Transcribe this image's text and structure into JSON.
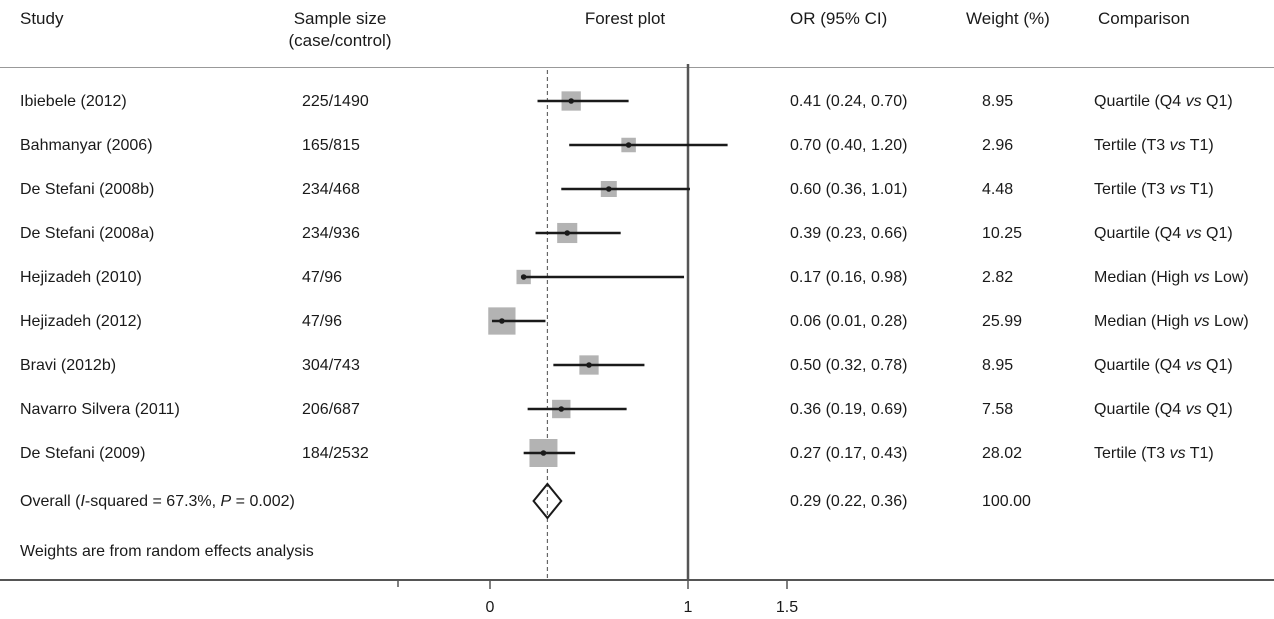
{
  "headers": {
    "study": "Study",
    "sample_size_line1": "Sample size",
    "sample_size_line2": "(case/control)",
    "forest_plot": "Forest plot",
    "or_ci": "OR (95% CI)",
    "weight": "Weight (%)",
    "comparison": "Comparison"
  },
  "rows": [
    {
      "study": "Ibiebele (2012)",
      "sample": "225/1490",
      "or_text": "0.41 (0.24, 0.70)",
      "weight": "8.95",
      "comp_pre": "Quartile (Q4 ",
      "comp_vs": "vs",
      "comp_post": " Q1)"
    },
    {
      "study": "Bahmanyar (2006)",
      "sample": "165/815",
      "or_text": "0.70 (0.40, 1.20)",
      "weight": "2.96",
      "comp_pre": "Tertile (T3 ",
      "comp_vs": "vs",
      "comp_post": " T1)"
    },
    {
      "study": "De Stefani (2008b)",
      "sample": "234/468",
      "or_text": "0.60 (0.36, 1.01)",
      "weight": "4.48",
      "comp_pre": "Tertile (T3 ",
      "comp_vs": "vs",
      "comp_post": " T1)"
    },
    {
      "study": "De Stefani (2008a)",
      "sample": "234/936",
      "or_text": "0.39 (0.23, 0.66)",
      "weight": "10.25",
      "comp_pre": "Quartile (Q4 ",
      "comp_vs": "vs",
      "comp_post": " Q1)"
    },
    {
      "study": "Hejizadeh (2010)",
      "sample": "47/96",
      "or_text": "0.17 (0.16, 0.98)",
      "weight": "2.82",
      "comp_pre": "Median (High ",
      "comp_vs": "vs",
      "comp_post": " Low)"
    },
    {
      "study": "Hejizadeh (2012)",
      "sample": "47/96",
      "or_text": "0.06 (0.01, 0.28)",
      "weight": "25.99",
      "comp_pre": "Median (High ",
      "comp_vs": "vs",
      "comp_post": " Low)"
    },
    {
      "study": "Bravi (2012b)",
      "sample": "304/743",
      "or_text": "0.50 (0.32, 0.78)",
      "weight": "8.95",
      "comp_pre": "Quartile (Q4 ",
      "comp_vs": "vs",
      "comp_post": " Q1)"
    },
    {
      "study": "Navarro Silvera (2011)",
      "sample": "206/687",
      "or_text": "0.36 (0.19, 0.69)",
      "weight": "7.58",
      "comp_pre": "Quartile (Q4 ",
      "comp_vs": "vs",
      "comp_post": " Q1)"
    },
    {
      "study": "De Stefani (2009)",
      "sample": "184/2532",
      "or_text": "0.27 (0.17, 0.43)",
      "weight": "28.02",
      "comp_pre": "Tertile (T3 ",
      "comp_vs": "vs",
      "comp_post": " T1)"
    }
  ],
  "overall": {
    "label_pre": "Overall (",
    "label_i": "I",
    "label_mid": "-squared = 67.3%, ",
    "label_p": "P",
    "label_post": " = 0.002)",
    "or_text": "0.29 (0.22, 0.36)",
    "weight": "100.00"
  },
  "footnote": "Weights are from random effects analysis",
  "chart_data": {
    "type": "forest",
    "xlim": [
      0,
      1.5
    ],
    "xticks": [
      0,
      1,
      1.5
    ],
    "xtick_labels": [
      "0",
      "1",
      "1.5"
    ],
    "null_line": 1,
    "overall_line": 0.29,
    "colors": {
      "box": "#b3b3b3",
      "line": "#1a1a1a",
      "null_line": "#555555",
      "overall_line": "#666666"
    },
    "studies": [
      {
        "or": 0.41,
        "lo": 0.24,
        "hi": 0.7,
        "weight": 8.95
      },
      {
        "or": 0.7,
        "lo": 0.4,
        "hi": 1.2,
        "weight": 2.96
      },
      {
        "or": 0.6,
        "lo": 0.36,
        "hi": 1.01,
        "weight": 4.48
      },
      {
        "or": 0.39,
        "lo": 0.23,
        "hi": 0.66,
        "weight": 10.25
      },
      {
        "or": 0.17,
        "lo": 0.16,
        "hi": 0.98,
        "weight": 2.82
      },
      {
        "or": 0.06,
        "lo": 0.01,
        "hi": 0.28,
        "weight": 25.99
      },
      {
        "or": 0.5,
        "lo": 0.32,
        "hi": 0.78,
        "weight": 8.95
      },
      {
        "or": 0.36,
        "lo": 0.19,
        "hi": 0.69,
        "weight": 7.58
      },
      {
        "or": 0.27,
        "lo": 0.17,
        "hi": 0.43,
        "weight": 28.02
      }
    ],
    "overall": {
      "or": 0.29,
      "lo": 0.22,
      "hi": 0.36
    }
  }
}
